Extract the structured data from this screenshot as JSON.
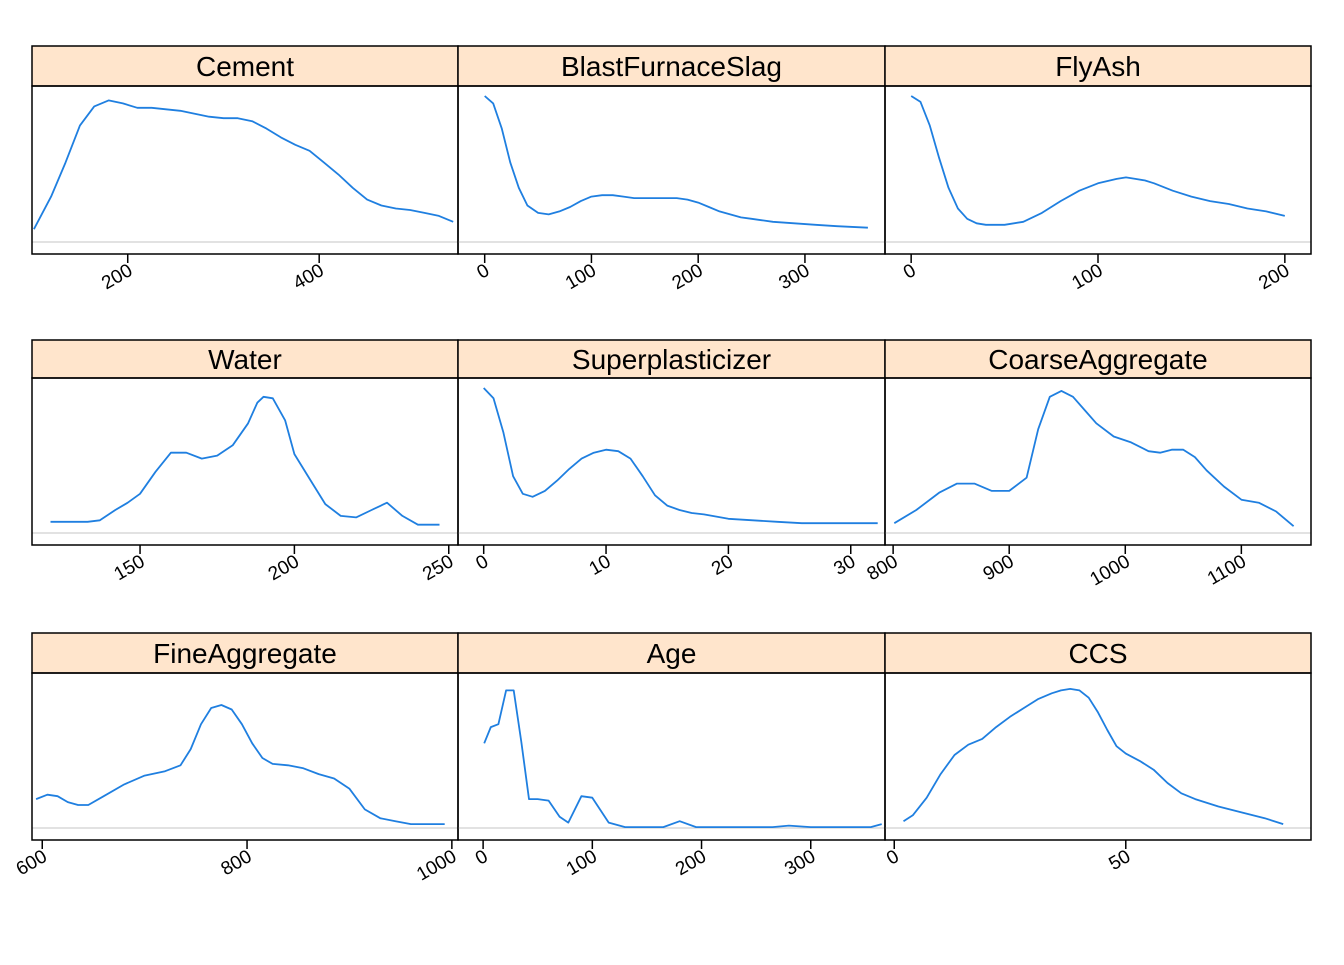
{
  "colors": {
    "line": "#1f7fe0",
    "strip": "#ffe5cc",
    "frame": "#000000",
    "baseline": "#d9d9d9",
    "background": "#ffffff"
  },
  "chart_data": [
    {
      "type": "line",
      "panel": "Cement",
      "title": "Cement",
      "xlim": [
        100,
        545
      ],
      "ylim": [
        0,
        1
      ],
      "xticks": [
        200,
        400
      ],
      "x": [
        102,
        120,
        135,
        150,
        165,
        180,
        195,
        210,
        225,
        240,
        255,
        270,
        285,
        300,
        315,
        330,
        345,
        360,
        375,
        390,
        405,
        420,
        435,
        450,
        465,
        480,
        495,
        510,
        525,
        540
      ],
      "y": [
        0.1,
        0.32,
        0.55,
        0.8,
        0.93,
        0.97,
        0.95,
        0.92,
        0.92,
        0.91,
        0.9,
        0.88,
        0.86,
        0.85,
        0.85,
        0.83,
        0.78,
        0.72,
        0.67,
        0.63,
        0.55,
        0.47,
        0.38,
        0.3,
        0.26,
        0.24,
        0.23,
        0.21,
        0.19,
        0.15
      ]
    },
    {
      "type": "line",
      "panel": "BlastFurnaceSlag",
      "title": "BlastFurnaceSlag",
      "xlim": [
        -25,
        375
      ],
      "ylim": [
        0,
        1
      ],
      "xticks": [
        0,
        100,
        200,
        300
      ],
      "x": [
        0,
        8,
        16,
        24,
        32,
        40,
        50,
        60,
        70,
        80,
        90,
        100,
        110,
        120,
        130,
        140,
        150,
        160,
        170,
        180,
        190,
        200,
        210,
        220,
        230,
        240,
        250,
        270,
        290,
        310,
        330,
        359
      ],
      "y": [
        1.0,
        0.95,
        0.78,
        0.55,
        0.38,
        0.26,
        0.21,
        0.2,
        0.22,
        0.25,
        0.29,
        0.32,
        0.33,
        0.33,
        0.32,
        0.31,
        0.31,
        0.31,
        0.31,
        0.31,
        0.3,
        0.28,
        0.25,
        0.22,
        0.2,
        0.18,
        0.17,
        0.15,
        0.14,
        0.13,
        0.12,
        0.11
      ]
    },
    {
      "type": "line",
      "panel": "FlyAsh",
      "title": "FlyAsh",
      "xlim": [
        -14,
        214
      ],
      "ylim": [
        0,
        1
      ],
      "xticks": [
        0,
        100,
        200
      ],
      "x": [
        0,
        5,
        10,
        15,
        20,
        25,
        30,
        35,
        40,
        50,
        60,
        70,
        80,
        90,
        100,
        110,
        115,
        120,
        125,
        130,
        140,
        150,
        160,
        170,
        180,
        190,
        200
      ],
      "y": [
        1.0,
        0.96,
        0.8,
        0.58,
        0.38,
        0.24,
        0.17,
        0.14,
        0.13,
        0.13,
        0.15,
        0.21,
        0.29,
        0.36,
        0.41,
        0.44,
        0.45,
        0.44,
        0.43,
        0.41,
        0.36,
        0.32,
        0.29,
        0.27,
        0.24,
        0.22,
        0.19
      ]
    },
    {
      "type": "line",
      "panel": "Water",
      "title": "Water",
      "xlim": [
        115,
        253
      ],
      "ylim": [
        0,
        1
      ],
      "xticks": [
        150,
        200,
        250
      ],
      "x": [
        121,
        127,
        133,
        137,
        142,
        146,
        150,
        155,
        160,
        165,
        170,
        175,
        180,
        185,
        188,
        190,
        193,
        197,
        200,
        205,
        210,
        215,
        220,
        225,
        230,
        235,
        240,
        245,
        247
      ],
      "y": [
        0.09,
        0.09,
        0.09,
        0.1,
        0.17,
        0.22,
        0.28,
        0.43,
        0.56,
        0.56,
        0.52,
        0.54,
        0.61,
        0.76,
        0.9,
        0.94,
        0.93,
        0.78,
        0.55,
        0.38,
        0.21,
        0.13,
        0.12,
        0.17,
        0.22,
        0.13,
        0.07,
        0.07,
        0.07
      ]
    },
    {
      "type": "line",
      "panel": "Superplasticizer",
      "title": "Superplasticizer",
      "xlim": [
        -2.1,
        32.8
      ],
      "ylim": [
        0,
        1
      ],
      "xticks": [
        0,
        10,
        20,
        30
      ],
      "x": [
        0,
        0.8,
        1.6,
        2.4,
        3.2,
        4,
        5,
        6,
        7,
        8,
        9,
        10,
        11,
        12,
        13,
        14,
        15,
        16,
        17,
        18,
        20,
        22,
        24,
        26,
        28,
        30,
        32.2
      ],
      "y": [
        1.0,
        0.93,
        0.7,
        0.4,
        0.28,
        0.26,
        0.3,
        0.37,
        0.45,
        0.52,
        0.56,
        0.58,
        0.57,
        0.52,
        0.4,
        0.27,
        0.2,
        0.17,
        0.15,
        0.14,
        0.11,
        0.1,
        0.09,
        0.08,
        0.08,
        0.08,
        0.08
      ]
    },
    {
      "type": "line",
      "panel": "CoarseAggregate",
      "title": "CoarseAggregate",
      "xlim": [
        793,
        1160
      ],
      "ylim": [
        0,
        1
      ],
      "xticks": [
        800,
        900,
        1000,
        1100
      ],
      "x": [
        801,
        820,
        840,
        855,
        870,
        885,
        900,
        915,
        925,
        935,
        945,
        955,
        965,
        975,
        990,
        1005,
        1020,
        1030,
        1040,
        1050,
        1060,
        1070,
        1085,
        1100,
        1115,
        1130,
        1145
      ],
      "y": [
        0.08,
        0.17,
        0.29,
        0.35,
        0.35,
        0.3,
        0.3,
        0.39,
        0.72,
        0.94,
        0.98,
        0.94,
        0.85,
        0.76,
        0.67,
        0.63,
        0.57,
        0.56,
        0.58,
        0.58,
        0.53,
        0.44,
        0.33,
        0.24,
        0.22,
        0.16,
        0.06
      ]
    },
    {
      "type": "line",
      "panel": "FineAggregate",
      "title": "FineAggregate",
      "xlim": [
        590,
        1006
      ],
      "ylim": [
        0,
        1
      ],
      "xticks": [
        600,
        800,
        1000
      ],
      "x": [
        594,
        605,
        615,
        625,
        635,
        645,
        660,
        680,
        700,
        720,
        735,
        745,
        755,
        765,
        775,
        785,
        795,
        805,
        815,
        825,
        840,
        855,
        870,
        885,
        900,
        915,
        930,
        945,
        960,
        980,
        993
      ],
      "y": [
        0.21,
        0.24,
        0.23,
        0.19,
        0.17,
        0.17,
        0.23,
        0.31,
        0.37,
        0.4,
        0.44,
        0.55,
        0.72,
        0.83,
        0.85,
        0.82,
        0.72,
        0.59,
        0.49,
        0.45,
        0.44,
        0.42,
        0.38,
        0.35,
        0.28,
        0.14,
        0.08,
        0.06,
        0.04,
        0.04,
        0.04
      ]
    },
    {
      "type": "line",
      "panel": "Age",
      "title": "Age",
      "xlim": [
        -23,
        368
      ],
      "ylim": [
        0,
        1
      ],
      "xticks": [
        0,
        100,
        200,
        300
      ],
      "x": [
        1,
        7,
        14,
        21,
        28,
        35,
        42,
        50,
        60,
        70,
        78,
        90,
        100,
        115,
        130,
        150,
        165,
        180,
        195,
        210,
        230,
        250,
        265,
        280,
        300,
        320,
        340,
        355,
        365
      ],
      "y": [
        0.59,
        0.7,
        0.72,
        0.95,
        0.95,
        0.6,
        0.21,
        0.21,
        0.2,
        0.09,
        0.05,
        0.23,
        0.22,
        0.05,
        0.02,
        0.02,
        0.02,
        0.06,
        0.02,
        0.02,
        0.02,
        0.02,
        0.02,
        0.03,
        0.02,
        0.02,
        0.02,
        0.02,
        0.04
      ]
    },
    {
      "type": "line",
      "panel": "CCS",
      "title": "CCS",
      "xlim": [
        -2,
        90
      ],
      "ylim": [
        0,
        1
      ],
      "xticks": [
        0,
        50
      ],
      "x": [
        2,
        4,
        7,
        10,
        13,
        16,
        19,
        22,
        25,
        28,
        31,
        34,
        36,
        38,
        40,
        42,
        44,
        46,
        48,
        50,
        53,
        56,
        59,
        62,
        65,
        70,
        75,
        80,
        84
      ],
      "y": [
        0.06,
        0.1,
        0.22,
        0.38,
        0.51,
        0.58,
        0.62,
        0.7,
        0.77,
        0.83,
        0.89,
        0.93,
        0.95,
        0.96,
        0.95,
        0.9,
        0.8,
        0.68,
        0.57,
        0.52,
        0.47,
        0.41,
        0.32,
        0.25,
        0.21,
        0.16,
        0.12,
        0.08,
        0.04
      ]
    }
  ]
}
